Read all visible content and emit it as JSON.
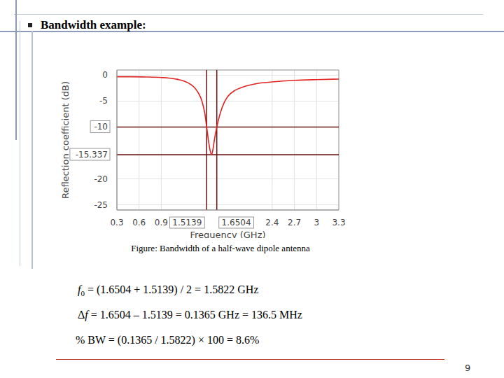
{
  "chart_data": {
    "type": "line",
    "x_label": "Frequency (GHz)",
    "y_label": "Reflection coefficient (dB)",
    "x": [
      0.3,
      0.5,
      0.7,
      0.9,
      1.0,
      1.1,
      1.2,
      1.3,
      1.35,
      1.4,
      1.45,
      1.49,
      1.5139,
      1.54,
      1.56,
      1.58,
      1.6,
      1.62,
      1.6504,
      1.7,
      1.75,
      1.8,
      1.9,
      2.0,
      2.2,
      2.4,
      2.7,
      3.0,
      3.3
    ],
    "values": [
      -0.3,
      -0.3,
      -0.35,
      -0.45,
      -0.55,
      -0.75,
      -1.1,
      -1.8,
      -2.4,
      -3.4,
      -5.0,
      -7.5,
      -10,
      -12.8,
      -14.5,
      -15.337,
      -14.2,
      -12.3,
      -10,
      -7.2,
      -5.3,
      -4.1,
      -2.9,
      -2.3,
      -1.6,
      -1.3,
      -1.0,
      -0.85,
      -0.75
    ],
    "color": "#e02424",
    "xlim": [
      0.3,
      3.3
    ],
    "xticks": [
      0.3,
      0.6,
      0.9,
      1.5139,
      1.6504,
      2.4,
      2.7,
      3,
      3.3
    ],
    "ylim": [
      -26,
      1
    ],
    "yticks": [
      0,
      -5,
      -10,
      -15.337,
      -20,
      -25
    ],
    "grid": true,
    "reference_lines": {
      "x": [
        1.5139,
        1.6504
      ],
      "y": [
        -10,
        -15.337
      ]
    }
  },
  "slide": {
    "title": "Bandwidth example:",
    "caption": "Figure: Bandwidth of a half-wave dipole antenna",
    "equations": [
      [
        {
          "text": "f",
          "italic": true
        },
        {
          "text": "0",
          "sub": true
        },
        {
          "text": " = (1.6504 + 1.5139) / 2 = 1.5822 GHz"
        }
      ],
      [
        {
          "text": "Δ"
        },
        {
          "text": "f",
          "italic": true
        },
        {
          "text": " = 1.6504 – 1.5139 = 0.1365 GHz = 136.5 MHz"
        }
      ],
      [
        {
          "text": "% BW = (0.1365 / 1.5822) × 100 = 8.6%"
        }
      ]
    ],
    "page": 9
  }
}
